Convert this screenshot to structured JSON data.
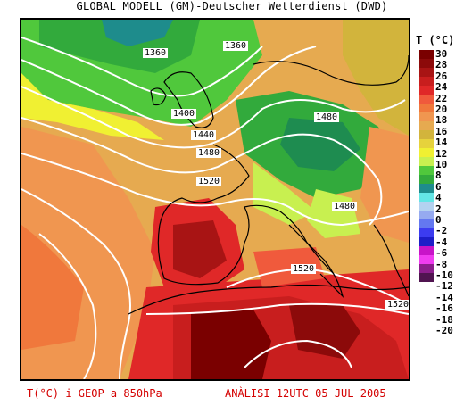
{
  "header": {
    "title": "GLOBAL MODELL (GM)-Deutscher Wetterdienst (DWD)"
  },
  "legend": {
    "title": "T (°C)",
    "ticks": [
      "30",
      "28",
      "26",
      "24",
      "22",
      "20",
      "18",
      "16",
      "14",
      "12",
      "10",
      "8",
      "6",
      "4",
      "2",
      "0",
      "-2",
      "-4",
      "-6",
      "-8",
      "-10",
      "-12",
      "-14",
      "-16",
      "-18",
      "-20"
    ],
    "colors": [
      "#7a0000",
      "#8c0a0a",
      "#a81414",
      "#c81e1e",
      "#e02828",
      "#f05a3c",
      "#f0783c",
      "#f09650",
      "#e6aa50",
      "#d2b43c",
      "#e6d23c",
      "#f0f032",
      "#c8f050",
      "#50c83c",
      "#32aa3c",
      "#1e8c8c",
      "#64e6e6",
      "#b4d2f0",
      "#96aaf0",
      "#6478f0",
      "#3c3cf0",
      "#1e1ec8",
      "#c814c8",
      "#f03cf0",
      "#8c1e8c",
      "#501450"
    ]
  },
  "isobars": {
    "labels": [
      "1360",
      "1360",
      "1400",
      "1440",
      "1480",
      "1480",
      "1520",
      "1480",
      "1520",
      "1520"
    ]
  },
  "footer": {
    "left": "T(°C) i GEOP a 850hPa",
    "right": "ANÀLISI 12UTC 05 JUL 2005"
  }
}
